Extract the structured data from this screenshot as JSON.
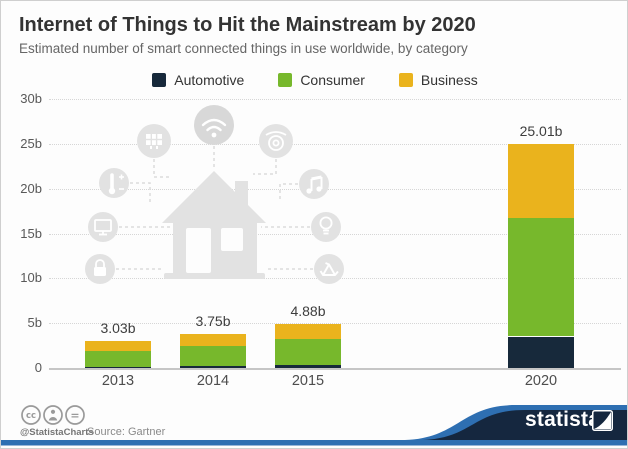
{
  "header": {
    "title": "Internet of Things to Hit the Mainstream by 2020",
    "subtitle": "Estimated number of smart connected things in use worldwide, by category"
  },
  "legend": [
    {
      "label": "Automotive",
      "color": "#17293b"
    },
    {
      "label": "Consumer",
      "color": "#77b82c"
    },
    {
      "label": "Business",
      "color": "#eab31d"
    }
  ],
  "chart_data": {
    "type": "bar",
    "stacked": true,
    "categories": [
      "2013",
      "2014",
      "2015",
      "2020"
    ],
    "series": [
      {
        "name": "Automotive",
        "color": "#17293b",
        "values": [
          0.1,
          0.19,
          0.37,
          3.51
        ]
      },
      {
        "name": "Consumer",
        "color": "#77b82c",
        "values": [
          1.84,
          2.24,
          2.87,
          13.17
        ]
      },
      {
        "name": "Business",
        "color": "#eab31d",
        "values": [
          1.09,
          1.32,
          1.63,
          8.32
        ]
      }
    ],
    "totals": [
      "3.03b",
      "3.75b",
      "4.88b",
      "25.01b"
    ],
    "yticks": [
      "0",
      "5b",
      "10b",
      "15b",
      "20b",
      "25b",
      "30b"
    ],
    "ylim": [
      0,
      30
    ],
    "grid": true,
    "legend_position": "top",
    "unit": "billions of connected things"
  },
  "watermark": {
    "icons": [
      "solar-panel",
      "wifi",
      "security-camera",
      "thermostat",
      "music-notes",
      "monitor",
      "lightbulb",
      "padlock",
      "recycle",
      "smart-house"
    ]
  },
  "footer": {
    "license_icons": [
      "cc",
      "by",
      "nd"
    ],
    "handle": "@StatistaCharts",
    "source": "Source: Gartner",
    "brand": "statista"
  },
  "colors": {
    "brand_navy": "#15273f",
    "brand_blue": "#2e6fb2",
    "watermark_gray": "#e2e2e2",
    "gridline": "#d6d6d6"
  }
}
